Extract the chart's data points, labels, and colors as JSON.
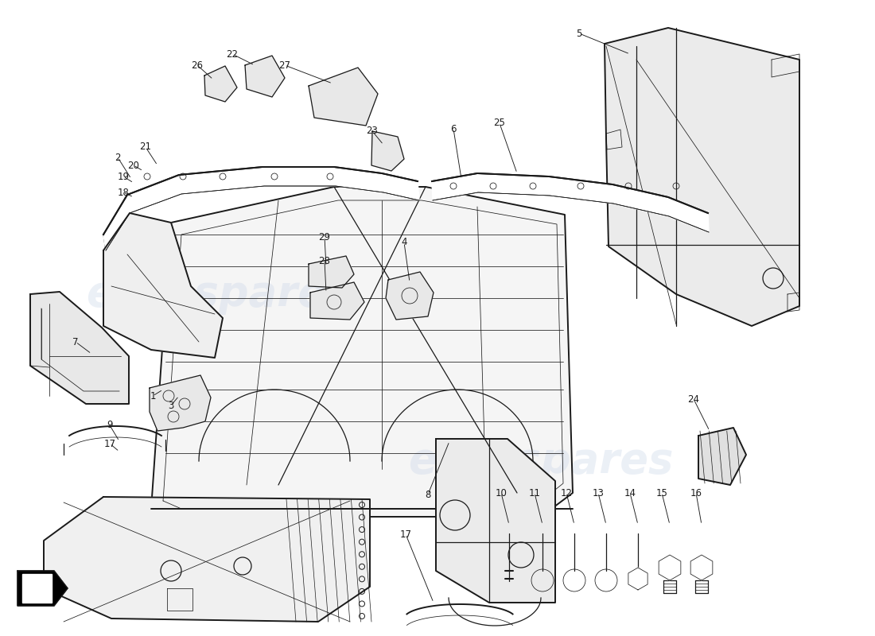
{
  "bg": "#ffffff",
  "lc": "#1a1a1a",
  "wm_color": "#c8d4e8",
  "wm_alpha": 0.35,
  "lw1": 1.4,
  "lw2": 0.9,
  "lw3": 0.55
}
